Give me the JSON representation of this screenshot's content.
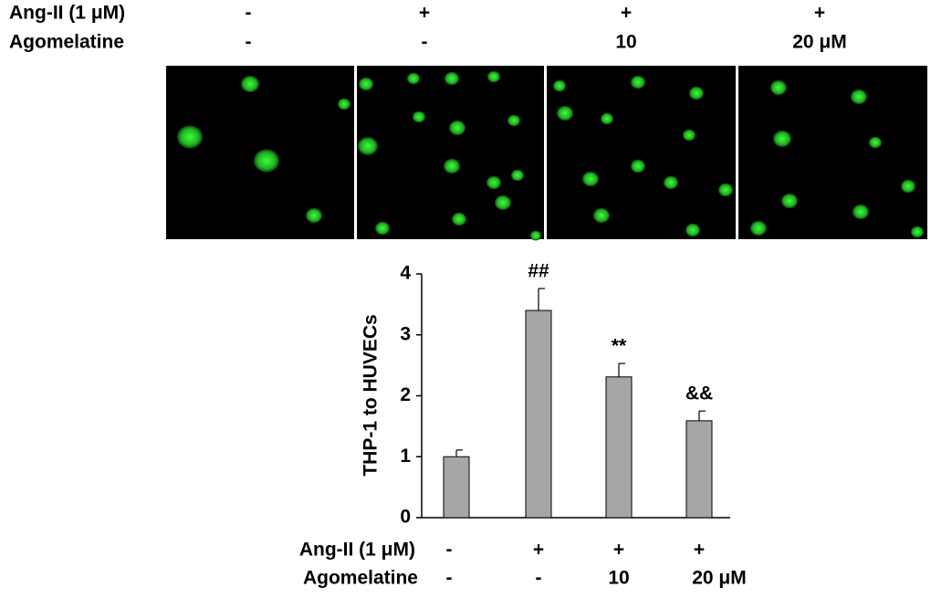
{
  "conditions_top": {
    "rows": [
      {
        "label": "Ang-II (1 μM)",
        "cells": [
          "-",
          "+",
          "+",
          "+"
        ]
      },
      {
        "label": "Agomelatine",
        "cells": [
          "-",
          "-",
          "10",
          "20 μM"
        ]
      }
    ]
  },
  "chart_data": {
    "type": "bar",
    "y_label": "THP-1 to HUVECs",
    "values": [
      1.0,
      3.4,
      2.31,
      1.59
    ],
    "errors": [
      0.11,
      0.36,
      0.22,
      0.16
    ],
    "annotations": [
      null,
      "##",
      "**",
      "&&"
    ],
    "color": "#a6a6a6",
    "ylim": [
      0,
      4
    ],
    "yticks": [
      0,
      1,
      2,
      3,
      4
    ],
    "condition_rows": [
      {
        "label": "Ang-II (1 μM)",
        "cells": [
          "-",
          "+",
          "+",
          "+"
        ]
      },
      {
        "label": "Agomelatine",
        "cells": [
          "-",
          "-",
          "10",
          "20 μM"
        ]
      }
    ]
  }
}
